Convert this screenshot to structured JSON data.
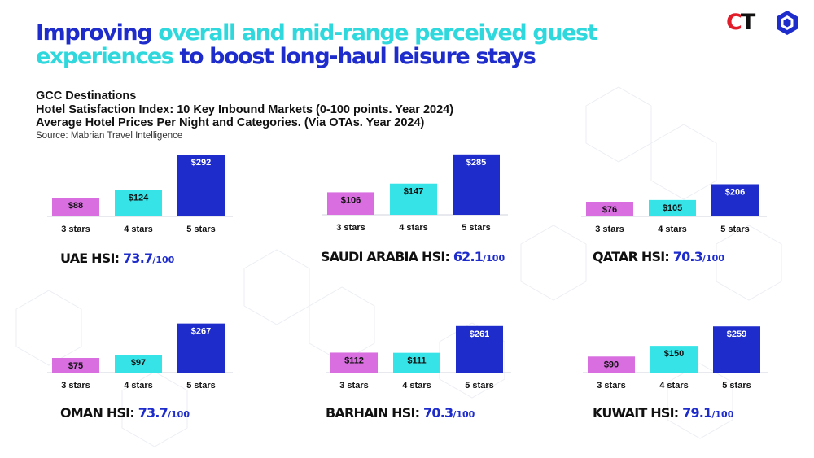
{
  "title": {
    "part1": "Improving ",
    "part2": "overall and mid-range perceived guest experiences",
    "part3": " to boost long-haul leisure stays"
  },
  "logo": {
    "c": "C",
    "t": "T",
    "icon": "hexagon-logo-icon"
  },
  "subtitle": {
    "line1": "GCC Destinations",
    "line2": "Hotel Satisfaction Index: 10 Key Inbound Markets (0-100 points. Year 2024)",
    "line3": "Average Hotel Prices Per Night and Categories. (Via OTAs. Year 2024)",
    "source": "Source: Mabrian Travel Intelligence"
  },
  "colors": {
    "3 stars": "#d86ee0",
    "4 stars": "#36e4e8",
    "5 stars": "#1e2ccc",
    "accent": "#1e2ccc",
    "cyan": "#2fd8dd"
  },
  "chart_data": [
    {
      "type": "bar",
      "country": "UAE",
      "hsi_prefix": "UAE HSI: ",
      "hsi": "73.7",
      "hsi_max": "/100",
      "categories": [
        "3 stars",
        "4 stars",
        "5 stars"
      ],
      "values": [
        88,
        124,
        292
      ],
      "value_labels": [
        "$88",
        "$124",
        "$292"
      ],
      "unit": "$"
    },
    {
      "type": "bar",
      "country": "SAUDI ARABIA",
      "hsi_prefix": "SAUDI ARABIA HSI: ",
      "hsi": "62.1",
      "hsi_max": "/100",
      "categories": [
        "3 stars",
        "4 stars",
        "5 stars"
      ],
      "values": [
        106,
        147,
        285
      ],
      "value_labels": [
        "$106",
        "$147",
        "$285"
      ],
      "unit": "$"
    },
    {
      "type": "bar",
      "country": "QATAR",
      "hsi_prefix": "QATAR HSI: ",
      "hsi": "70.3",
      "hsi_max": "/100",
      "categories": [
        "3 stars",
        "4 stars",
        "5 stars"
      ],
      "values": [
        76,
        105,
        206
      ],
      "value_labels": [
        "$76",
        "$105",
        "$206"
      ],
      "unit": "$"
    },
    {
      "type": "bar",
      "country": "OMAN",
      "hsi_prefix": "OMAN HSI: ",
      "hsi": "73.7",
      "hsi_max": "/100",
      "categories": [
        "3 stars",
        "4 stars",
        "5 stars"
      ],
      "values": [
        75,
        97,
        267
      ],
      "value_labels": [
        "$75",
        "$97",
        "$267"
      ],
      "unit": "$"
    },
    {
      "type": "bar",
      "country": "BARHAIN",
      "hsi_prefix": "BARHAIN HSI: ",
      "hsi": "70.3",
      "hsi_max": "/100",
      "categories": [
        "3 stars",
        "4 stars",
        "5 stars"
      ],
      "values": [
        112,
        111,
        261
      ],
      "value_labels": [
        "$112",
        "$111",
        "$261"
      ],
      "unit": "$"
    },
    {
      "type": "bar",
      "country": "KUWAIT",
      "hsi_prefix": "KUWAIT HSI: ",
      "hsi": "79.1",
      "hsi_max": "/100",
      "categories": [
        "3 stars",
        "4 stars",
        "5 stars"
      ],
      "values": [
        90,
        150,
        259
      ],
      "value_labels": [
        "$90",
        "$150",
        "$259"
      ],
      "unit": "$"
    }
  ]
}
